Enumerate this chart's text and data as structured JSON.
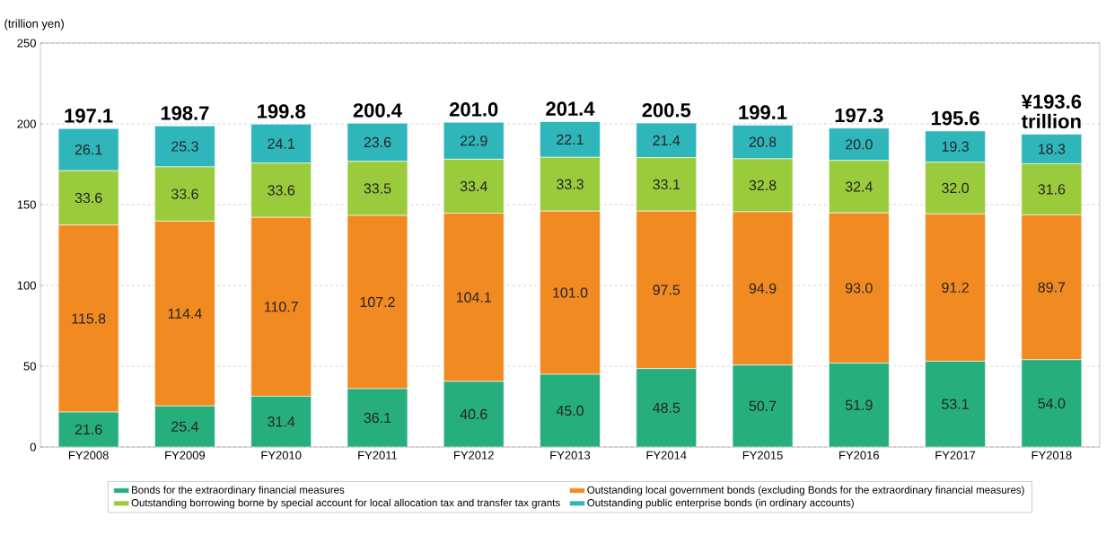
{
  "chart_data": {
    "type": "bar",
    "stacked": true,
    "ylabel": "(trillion yen)",
    "categories": [
      "FY2008",
      "FY2009",
      "FY2010",
      "FY2011",
      "FY2012",
      "FY2013",
      "FY2014",
      "FY2015",
      "FY2016",
      "FY2017",
      "FY2018"
    ],
    "series": [
      {
        "name": "Bonds for the extraordinary financial measures",
        "color": "#26ae7c",
        "values": [
          21.6,
          25.4,
          31.4,
          36.1,
          40.6,
          45.0,
          48.5,
          50.7,
          51.9,
          53.1,
          54.0
        ],
        "value_labels": [
          "21.6",
          "25.4",
          "31.4",
          "36.1",
          "40.6",
          "45.0",
          "48.5",
          "50.7",
          "51.9",
          "53.1",
          "54.0"
        ]
      },
      {
        "name": "Outstanding local government bonds (excluding Bonds for the extraordinary financial measures)",
        "color": "#f28a22",
        "values": [
          115.8,
          114.4,
          110.7,
          107.2,
          104.1,
          101.0,
          97.5,
          94.9,
          93.0,
          91.2,
          89.7
        ],
        "value_labels": [
          "115.8",
          "114.4",
          "110.7",
          "107.2",
          "104.1",
          "101.0",
          "97.5",
          "94.9",
          "93.0",
          "91.2",
          "89.7"
        ]
      },
      {
        "name": "Outstanding borrowing borne by special account for local allocation tax and transfer tax grants",
        "color": "#9acb3c",
        "values": [
          33.6,
          33.6,
          33.6,
          33.5,
          33.4,
          33.3,
          33.1,
          32.8,
          32.4,
          32.0,
          31.6
        ],
        "value_labels": [
          "33.6",
          "33.6",
          "33.6",
          "33.5",
          "33.4",
          "33.3",
          "33.1",
          "32.8",
          "32.4",
          "32.0",
          "31.6"
        ]
      },
      {
        "name": "Outstanding public enterprise bonds (in ordinary accounts)",
        "color": "#2fb6bb",
        "values": [
          26.1,
          25.3,
          24.1,
          23.6,
          22.9,
          22.1,
          21.4,
          20.8,
          20.0,
          19.3,
          18.3
        ],
        "value_labels": [
          "26.1",
          "25.3",
          "24.1",
          "23.6",
          "22.9",
          "22.1",
          "21.4",
          "20.8",
          "20.0",
          "19.3",
          "18.3"
        ]
      }
    ],
    "totals": [
      "197.1",
      "198.7",
      "199.8",
      "200.4",
      "201.0",
      "201.4",
      "200.5",
      "199.1",
      "197.3",
      "195.6",
      "¥193.6 trillion"
    ],
    "ylim": [
      0,
      250
    ],
    "yticks": [
      0,
      50,
      100,
      150,
      200,
      250
    ],
    "grid": "y",
    "legend": "bottom"
  }
}
